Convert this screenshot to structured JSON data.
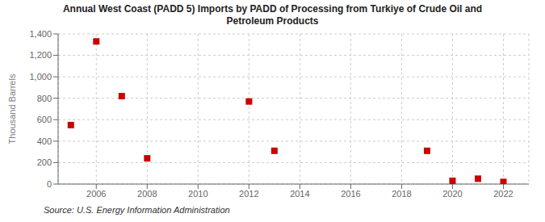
{
  "chart_data": {
    "type": "scatter",
    "title": "Annual West Coast (PADD 5) Imports by PADD of Processing from Turkiye of Crude Oil and\nPetroleum Products",
    "ylabel": "Thousand Barrels",
    "source": "Source: U.S. Energy Information Administration",
    "x": [
      2005,
      2006,
      2007,
      2008,
      2012,
      2013,
      2019,
      2020,
      2021,
      2022
    ],
    "values": [
      550,
      1330,
      820,
      240,
      770,
      310,
      310,
      30,
      50,
      20
    ],
    "color": "#cc0000",
    "marker": "square",
    "xlim": [
      2004.5,
      2023
    ],
    "ylim": [
      0,
      1400
    ],
    "xticks": [
      2006,
      2008,
      2010,
      2012,
      2014,
      2016,
      2018,
      2020,
      2022
    ],
    "yticks": [
      0,
      200,
      400,
      600,
      800,
      {
        "value": 1000,
        "label": "1,000"
      },
      {
        "value": 1200,
        "label": "1,200"
      },
      {
        "value": 1400,
        "label": "1,400"
      }
    ],
    "grid": true
  }
}
